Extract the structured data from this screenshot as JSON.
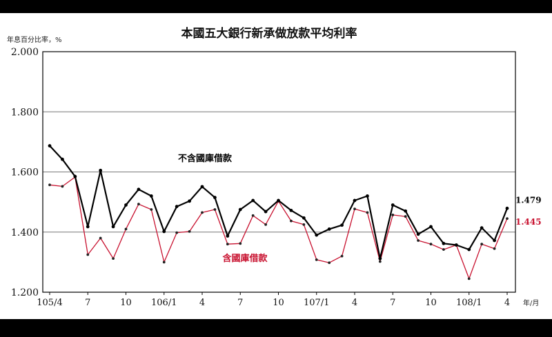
{
  "chart_data": {
    "type": "line",
    "title": "本國五大銀行新承做放款平均利率",
    "ylabel": "年息百分比率，%",
    "xlabel": "年/月",
    "ylim": [
      1.2,
      2.0
    ],
    "yticks": [
      "1.200",
      "1.400",
      "1.600",
      "1.800",
      "2.000"
    ],
    "xtick_labels": [
      {
        "index": 0,
        "label": "105/4"
      },
      {
        "index": 3,
        "label": "7"
      },
      {
        "index": 6,
        "label": "10"
      },
      {
        "index": 9,
        "label": "106/1"
      },
      {
        "index": 12,
        "label": "4"
      },
      {
        "index": 15,
        "label": "7"
      },
      {
        "index": 18,
        "label": "10"
      },
      {
        "index": 21,
        "label": "107/1"
      },
      {
        "index": 24,
        "label": "4"
      },
      {
        "index": 27,
        "label": "7"
      },
      {
        "index": 30,
        "label": "10"
      },
      {
        "index": 33,
        "label": "108/1"
      },
      {
        "index": 36,
        "label": "4"
      }
    ],
    "x": [
      "105/4",
      "105/5",
      "105/6",
      "105/7",
      "105/8",
      "105/9",
      "105/10",
      "105/11",
      "105/12",
      "106/1",
      "106/2",
      "106/3",
      "106/4",
      "106/5",
      "106/6",
      "106/7",
      "106/8",
      "106/9",
      "106/10",
      "106/11",
      "106/12",
      "107/1",
      "107/2",
      "107/3",
      "107/4",
      "107/5",
      "107/6",
      "107/7",
      "107/8",
      "107/9",
      "107/10",
      "107/11",
      "107/12",
      "108/1",
      "108/2",
      "108/3",
      "108/4"
    ],
    "grid": "horizontal",
    "series": [
      {
        "name": "不含國庫借款",
        "color": "#000000",
        "values": [
          1.687,
          1.642,
          1.585,
          1.418,
          1.605,
          1.418,
          1.49,
          1.542,
          1.52,
          1.402,
          1.485,
          1.503,
          1.551,
          1.515,
          1.387,
          1.475,
          1.505,
          1.468,
          1.505,
          1.472,
          1.447,
          1.39,
          1.41,
          1.423,
          1.505,
          1.52,
          1.312,
          1.49,
          1.47,
          1.393,
          1.418,
          1.362,
          1.357,
          1.342,
          1.414,
          1.372,
          1.479
        ],
        "end_label": "1.479"
      },
      {
        "name": "含國庫借款",
        "color": "#c8102e",
        "values": [
          1.557,
          1.552,
          1.583,
          1.325,
          1.38,
          1.312,
          1.41,
          1.493,
          1.475,
          1.3,
          1.398,
          1.402,
          1.465,
          1.475,
          1.36,
          1.362,
          1.455,
          1.425,
          1.503,
          1.437,
          1.425,
          1.308,
          1.298,
          1.32,
          1.477,
          1.465,
          1.302,
          1.457,
          1.452,
          1.372,
          1.36,
          1.342,
          1.357,
          1.245,
          1.36,
          1.345,
          1.445
        ],
        "end_label": "1.445"
      }
    ]
  }
}
